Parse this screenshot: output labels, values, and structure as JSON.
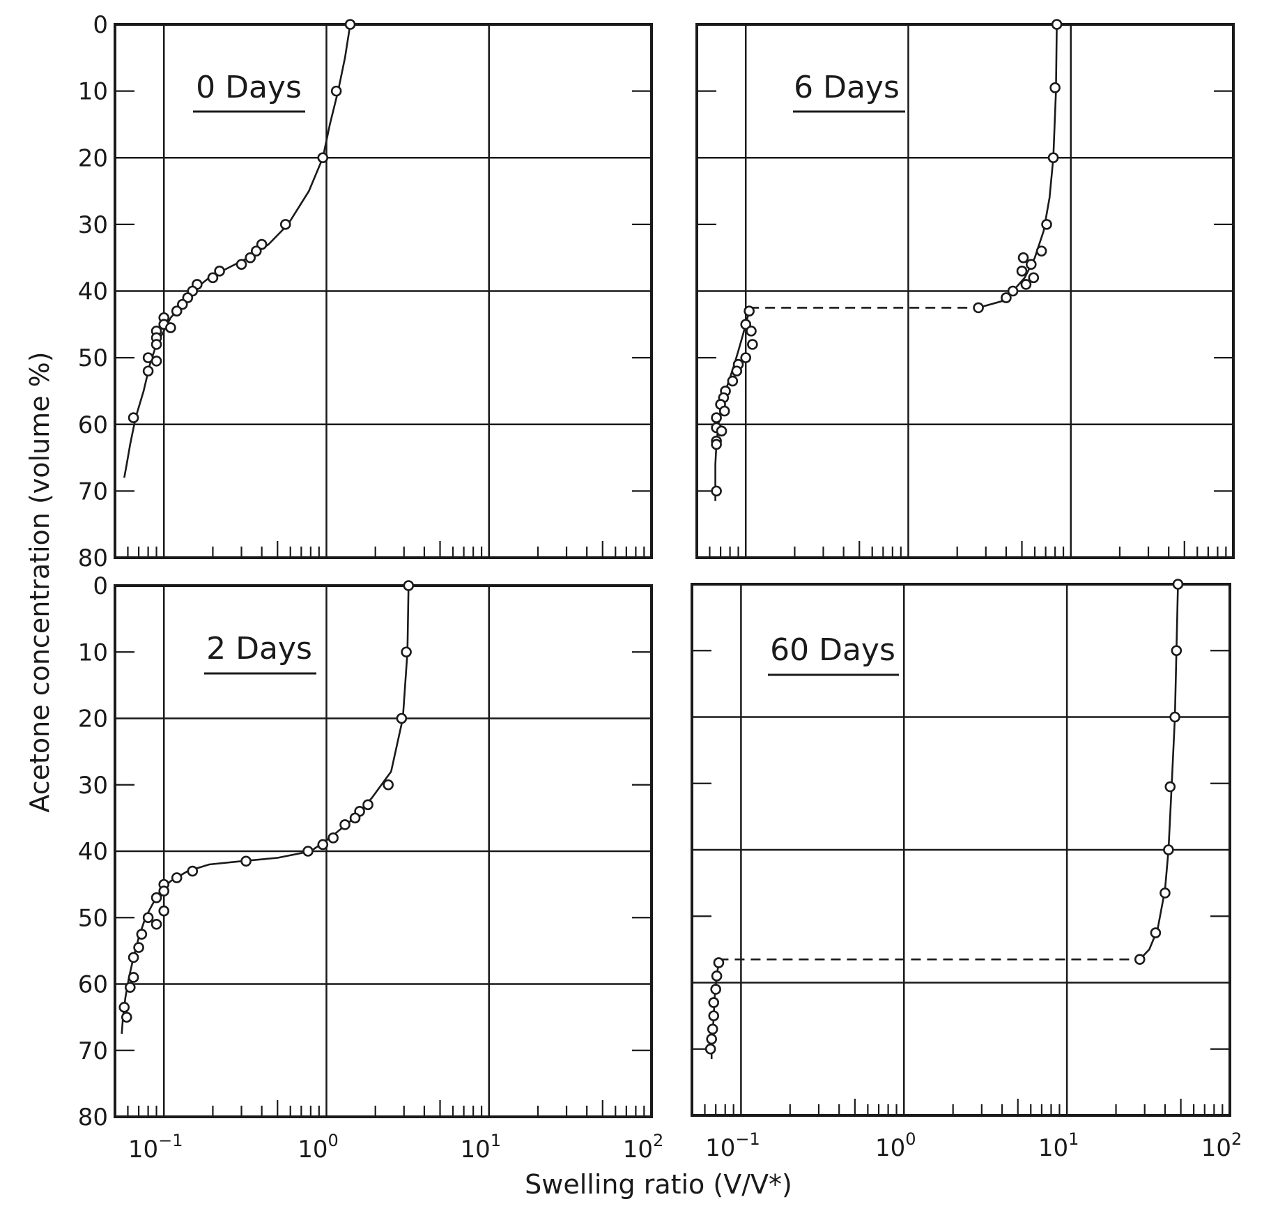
{
  "chart_data": {
    "type": "scatter",
    "x_title": "Swelling ratio (V/V*)",
    "y_title": "Acetone concentration (volume %)",
    "x_scale": "log",
    "xlim": [
      0.05,
      100
    ],
    "ylim": [
      0,
      80
    ],
    "y_inverted": true,
    "y_ticks": [
      "0",
      "10",
      "20",
      "30",
      "40",
      "50",
      "60",
      "70",
      "80"
    ],
    "x_ticks": [
      {
        "base": "10",
        "exp": "−1"
      },
      {
        "base": "10",
        "exp": "0"
      },
      {
        "base": "10",
        "exp": "1"
      },
      {
        "base": "10",
        "exp": "2"
      }
    ],
    "grid": true,
    "panels": [
      {
        "id": "p0",
        "label": "0 Days",
        "points": [
          [
            1.4,
            0
          ],
          [
            1.15,
            10
          ],
          [
            0.95,
            20
          ],
          [
            0.56,
            30
          ],
          [
            0.4,
            33
          ],
          [
            0.37,
            34
          ],
          [
            0.34,
            35
          ],
          [
            0.3,
            36
          ],
          [
            0.22,
            37
          ],
          [
            0.2,
            38
          ],
          [
            0.16,
            39
          ],
          [
            0.15,
            40
          ],
          [
            0.14,
            41
          ],
          [
            0.13,
            42
          ],
          [
            0.12,
            43
          ],
          [
            0.1,
            44
          ],
          [
            0.1,
            45
          ],
          [
            0.11,
            45.5
          ],
          [
            0.09,
            46
          ],
          [
            0.09,
            47
          ],
          [
            0.09,
            48
          ],
          [
            0.08,
            50
          ],
          [
            0.09,
            50.5
          ],
          [
            0.08,
            52
          ],
          [
            0.065,
            59
          ]
        ],
        "curve": [
          [
            1.4,
            0
          ],
          [
            1.3,
            5
          ],
          [
            1.18,
            10
          ],
          [
            1.05,
            15
          ],
          [
            0.95,
            20
          ],
          [
            0.78,
            25
          ],
          [
            0.58,
            30
          ],
          [
            0.44,
            33
          ],
          [
            0.33,
            35
          ],
          [
            0.25,
            36.5
          ],
          [
            0.19,
            38
          ],
          [
            0.15,
            40
          ],
          [
            0.13,
            42
          ],
          [
            0.11,
            44
          ],
          [
            0.1,
            46
          ],
          [
            0.09,
            48
          ],
          [
            0.082,
            51
          ],
          [
            0.075,
            55
          ],
          [
            0.067,
            59
          ],
          [
            0.062,
            63
          ],
          [
            0.059,
            66
          ],
          [
            0.057,
            68
          ]
        ]
      },
      {
        "id": "p1",
        "label": "6 Days",
        "points": [
          [
            8.2,
            0
          ],
          [
            8.0,
            9.5
          ],
          [
            7.8,
            20
          ],
          [
            7.1,
            30
          ],
          [
            6.6,
            34
          ],
          [
            5.9,
            38
          ],
          [
            5.7,
            36
          ],
          [
            5.1,
            35
          ],
          [
            5.0,
            37
          ],
          [
            5.3,
            39
          ],
          [
            4.4,
            40
          ],
          [
            4.0,
            41
          ],
          [
            2.7,
            42.5
          ],
          [
            0.105,
            43
          ],
          [
            0.1,
            45
          ],
          [
            0.108,
            46
          ],
          [
            0.11,
            48
          ],
          [
            0.1,
            50
          ],
          [
            0.09,
            51
          ],
          [
            0.088,
            52
          ],
          [
            0.083,
            53.5
          ],
          [
            0.075,
            55
          ],
          [
            0.073,
            56
          ],
          [
            0.07,
            57
          ],
          [
            0.074,
            58
          ],
          [
            0.066,
            59
          ],
          [
            0.066,
            60.5
          ],
          [
            0.071,
            61
          ],
          [
            0.066,
            62.5
          ],
          [
            0.066,
            63
          ],
          [
            0.066,
            70
          ]
        ],
        "curve": [
          [
            8.2,
            0
          ],
          [
            8.1,
            10
          ],
          [
            7.8,
            20
          ],
          [
            7.4,
            26
          ],
          [
            6.8,
            31
          ],
          [
            6.0,
            35
          ],
          [
            5.2,
            38
          ],
          [
            4.4,
            40
          ],
          [
            3.8,
            41.5
          ],
          [
            2.7,
            42.5
          ]
        ],
        "curve2": [
          [
            0.105,
            43
          ],
          [
            0.1,
            45
          ],
          [
            0.095,
            47
          ],
          [
            0.09,
            49
          ],
          [
            0.085,
            51
          ],
          [
            0.08,
            53
          ],
          [
            0.075,
            55
          ],
          [
            0.071,
            57
          ],
          [
            0.068,
            60
          ],
          [
            0.066,
            63
          ],
          [
            0.065,
            66
          ],
          [
            0.065,
            69
          ],
          [
            0.065,
            71.5
          ]
        ],
        "transition": {
          "y": 42.5,
          "x_from": 0.105,
          "x_to": 2.7
        }
      },
      {
        "id": "p2",
        "label": "2 Days",
        "points": [
          [
            3.2,
            0
          ],
          [
            3.1,
            10
          ],
          [
            2.9,
            20
          ],
          [
            2.4,
            30
          ],
          [
            1.8,
            33
          ],
          [
            1.6,
            34
          ],
          [
            1.5,
            35
          ],
          [
            1.3,
            36
          ],
          [
            1.1,
            38
          ],
          [
            0.95,
            39
          ],
          [
            0.77,
            40
          ],
          [
            0.32,
            41.5
          ],
          [
            0.15,
            43
          ],
          [
            0.12,
            44
          ],
          [
            0.1,
            45
          ],
          [
            0.1,
            46
          ],
          [
            0.09,
            47
          ],
          [
            0.1,
            49
          ],
          [
            0.08,
            50
          ],
          [
            0.09,
            51
          ],
          [
            0.073,
            52.5
          ],
          [
            0.07,
            54.5
          ],
          [
            0.065,
            56
          ],
          [
            0.065,
            59
          ],
          [
            0.062,
            60.5
          ],
          [
            0.057,
            63.5
          ],
          [
            0.059,
            65
          ]
        ],
        "curve": [
          [
            3.2,
            0
          ],
          [
            3.15,
            10
          ],
          [
            2.95,
            20
          ],
          [
            2.5,
            28
          ],
          [
            1.9,
            32
          ],
          [
            1.4,
            35.5
          ],
          [
            1.05,
            38
          ],
          [
            0.8,
            40
          ],
          [
            0.5,
            41
          ],
          [
            0.3,
            41.5
          ],
          [
            0.19,
            42
          ],
          [
            0.14,
            43
          ],
          [
            0.11,
            44.5
          ],
          [
            0.095,
            46
          ],
          [
            0.085,
            48
          ],
          [
            0.077,
            50
          ],
          [
            0.07,
            53
          ],
          [
            0.065,
            56
          ],
          [
            0.061,
            59
          ],
          [
            0.058,
            62
          ],
          [
            0.056,
            65
          ],
          [
            0.055,
            67.5
          ]
        ]
      },
      {
        "id": "p3",
        "label": "60 Days",
        "points": [
          [
            48,
            0
          ],
          [
            47,
            10
          ],
          [
            46,
            20
          ],
          [
            43,
            30.5
          ],
          [
            42,
            40
          ],
          [
            40,
            46.5
          ],
          [
            35,
            52.5
          ],
          [
            28,
            56.5
          ],
          [
            0.073,
            57
          ],
          [
            0.071,
            59
          ],
          [
            0.07,
            61
          ],
          [
            0.068,
            63
          ],
          [
            0.068,
            65
          ],
          [
            0.067,
            67
          ],
          [
            0.066,
            68.5
          ],
          [
            0.065,
            70
          ]
        ],
        "curve": [
          [
            48,
            0
          ],
          [
            47,
            10
          ],
          [
            46,
            20
          ],
          [
            44,
            30
          ],
          [
            42,
            40
          ],
          [
            40,
            46
          ],
          [
            36,
            52
          ],
          [
            32,
            55
          ],
          [
            28,
            56.5
          ]
        ],
        "curve2": [
          [
            0.073,
            57
          ],
          [
            0.071,
            59
          ],
          [
            0.069,
            62
          ],
          [
            0.068,
            65
          ],
          [
            0.067,
            68
          ],
          [
            0.066,
            70
          ],
          [
            0.066,
            71.5
          ]
        ],
        "transition": {
          "y": 56.5,
          "x_from": 0.073,
          "x_to": 28
        }
      }
    ]
  }
}
